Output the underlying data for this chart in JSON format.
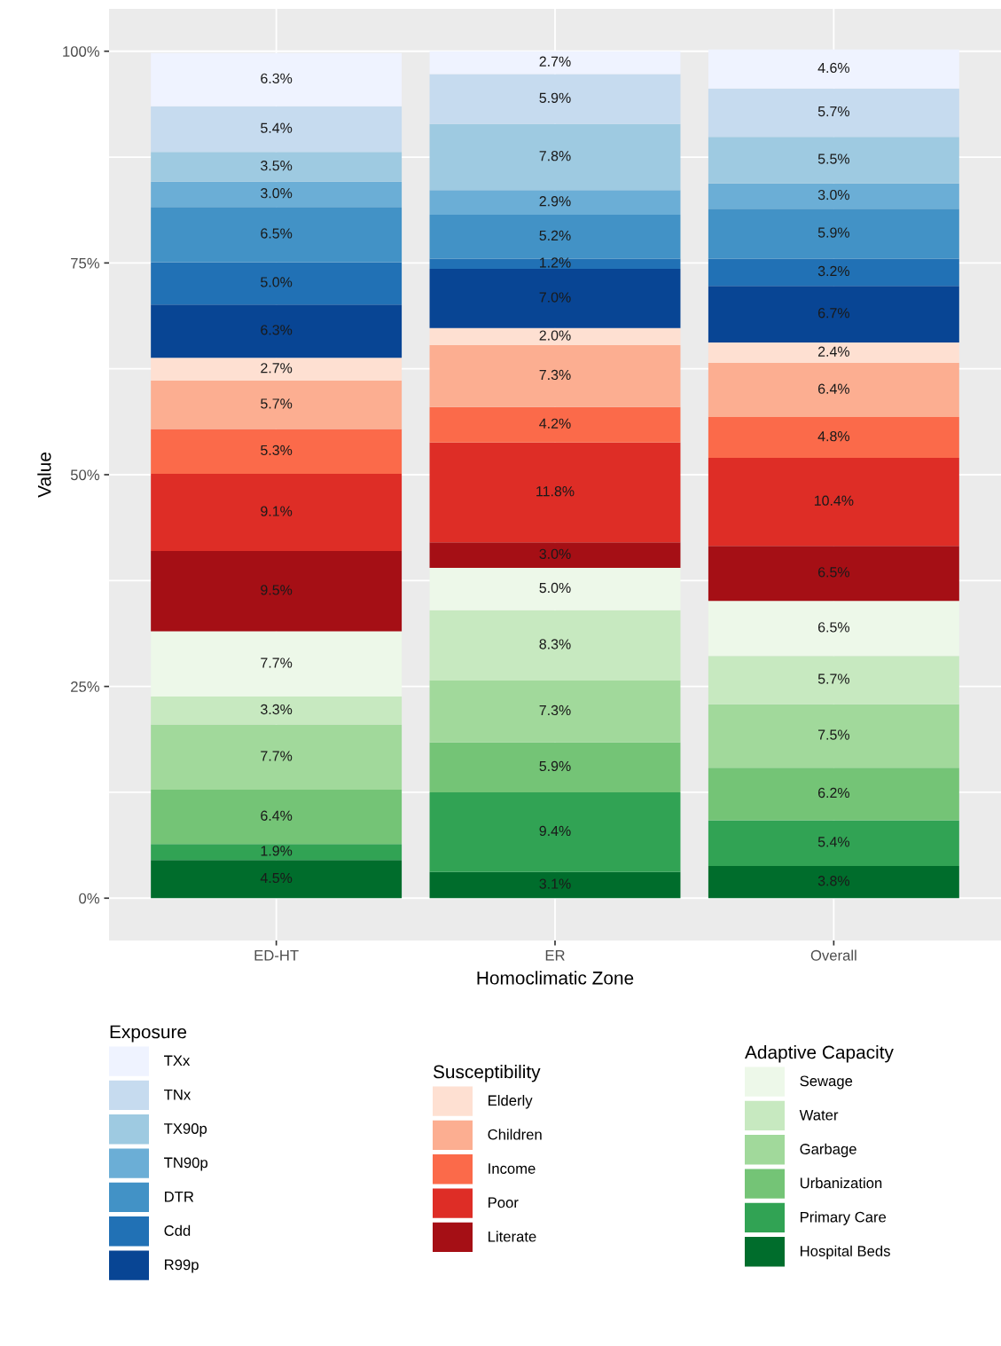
{
  "chart_data": {
    "type": "bar",
    "stacked": true,
    "xlabel": "Homoclimatic Zone",
    "ylabel": "Value",
    "categories": [
      "ED-HT",
      "ER",
      "Overall"
    ],
    "ylim": [
      -5,
      105
    ],
    "yticks": [
      {
        "value": 0,
        "label": "0%"
      },
      {
        "value": 12.5,
        "label": null
      },
      {
        "value": 25,
        "label": "25%"
      },
      {
        "value": 37.5,
        "label": null
      },
      {
        "value": 50,
        "label": "50%"
      },
      {
        "value": 62.5,
        "label": null
      },
      {
        "value": 75,
        "label": "75%"
      },
      {
        "value": 87.5,
        "label": null
      },
      {
        "value": 100,
        "label": "100%"
      }
    ],
    "grid": true,
    "legend": "bottom",
    "legend_title": [
      "Exposure",
      "Susceptibility",
      "Adaptive Capacity"
    ],
    "series": [
      {
        "name": "Hospital Beds",
        "color": "#006d2c",
        "values": [
          4.5,
          3.1,
          3.8
        ],
        "value_labels": [
          "4.5%",
          "3.1%",
          "3.8%"
        ]
      },
      {
        "name": "Primary Care",
        "color": "#31a354",
        "values": [
          1.9,
          9.4,
          5.4
        ],
        "value_labels": [
          "1.9%",
          "9.4%",
          "5.4%"
        ]
      },
      {
        "name": "Urbanization",
        "color": "#74c476",
        "values": [
          6.4,
          5.9,
          6.2
        ],
        "value_labels": [
          "6.4%",
          "5.9%",
          "6.2%"
        ]
      },
      {
        "name": "Garbage",
        "color": "#a1d99b",
        "values": [
          7.7,
          7.3,
          7.5
        ],
        "value_labels": [
          "7.7%",
          "7.3%",
          "7.5%"
        ]
      },
      {
        "name": "Water",
        "color": "#c7e9c0",
        "values": [
          3.3,
          8.3,
          5.7
        ],
        "value_labels": [
          "3.3%",
          "8.3%",
          "5.7%"
        ]
      },
      {
        "name": "Sewage",
        "color": "#edf8e9",
        "values": [
          7.7,
          5.0,
          6.5
        ],
        "value_labels": [
          "7.7%",
          "5.0%",
          "6.5%"
        ]
      },
      {
        "name": "Literate",
        "color": "#a50f15",
        "values": [
          9.5,
          3.0,
          6.5
        ],
        "value_labels": [
          "9.5%",
          "3.0%",
          "6.5%"
        ]
      },
      {
        "name": "Poor",
        "color": "#de2d26",
        "values": [
          9.1,
          11.8,
          10.4
        ],
        "value_labels": [
          "9.1%",
          "11.8%",
          "10.4%"
        ]
      },
      {
        "name": "Income",
        "color": "#fb6a4a",
        "values": [
          5.3,
          4.2,
          4.8
        ],
        "value_labels": [
          "5.3%",
          "4.2%",
          "4.8%"
        ]
      },
      {
        "name": "Children",
        "color": "#fcae91",
        "values": [
          5.7,
          7.3,
          6.4
        ],
        "value_labels": [
          "5.7%",
          "7.3%",
          "6.4%"
        ]
      },
      {
        "name": "Elderly",
        "color": "#fee0d2",
        "values": [
          2.7,
          2.0,
          2.4
        ],
        "value_labels": [
          "2.7%",
          "2.0%",
          "2.4%"
        ]
      },
      {
        "name": "R99p",
        "color": "#084594",
        "values": [
          6.3,
          7.0,
          6.7
        ],
        "value_labels": [
          "6.3%",
          "7.0%",
          "6.7%"
        ]
      },
      {
        "name": "Cdd",
        "color": "#2171b5",
        "values": [
          5.0,
          1.2,
          3.2
        ],
        "value_labels": [
          "5.0%",
          "1.2%",
          "3.2%"
        ]
      },
      {
        "name": "DTR",
        "color": "#4292c6",
        "values": [
          6.5,
          5.2,
          5.9
        ],
        "value_labels": [
          "6.5%",
          "5.2%",
          "5.9%"
        ]
      },
      {
        "name": "TN90p",
        "color": "#6baed6",
        "values": [
          3.0,
          2.9,
          3.0
        ],
        "value_labels": [
          "3.0%",
          "2.9%",
          "3.0%"
        ]
      },
      {
        "name": "TX90p",
        "color": "#9ecae1",
        "values": [
          3.5,
          7.8,
          5.5
        ],
        "value_labels": [
          "3.5%",
          "7.8%",
          "5.5%"
        ]
      },
      {
        "name": "TNx",
        "color": "#c6dbef",
        "values": [
          5.4,
          5.9,
          5.7
        ],
        "value_labels": [
          "5.4%",
          "5.9%",
          "5.7%"
        ]
      },
      {
        "name": "TXx",
        "color": "#eff3ff",
        "values": [
          6.3,
          2.7,
          4.6
        ],
        "value_labels": [
          "6.3%",
          "2.7%",
          "4.6%"
        ]
      }
    ]
  }
}
